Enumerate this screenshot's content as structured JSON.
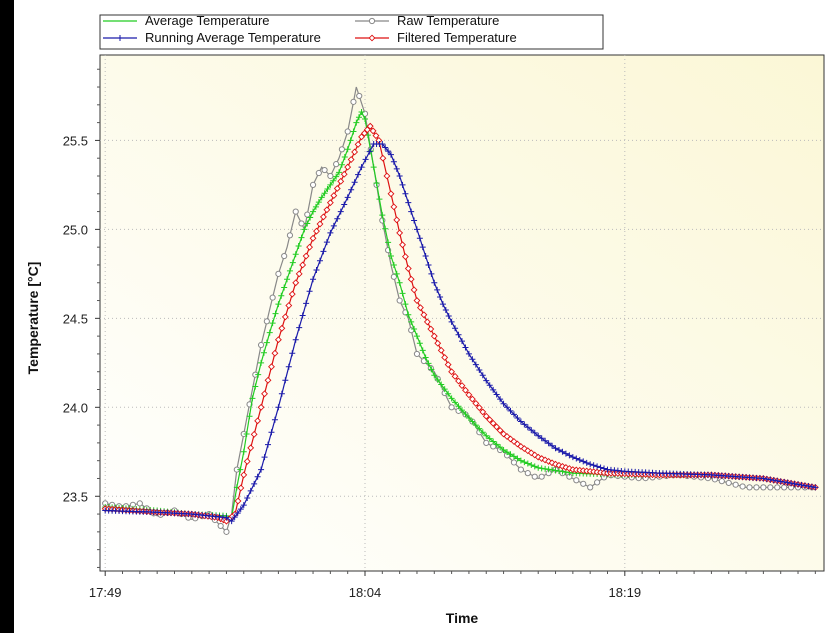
{
  "chart_data": {
    "type": "line",
    "xlabel": "Time",
    "ylabel": "Temperature [°C]",
    "x_ticks": [
      "17:49",
      "18:04",
      "18:19"
    ],
    "x_tick_minutes": [
      0,
      15,
      30
    ],
    "xlim": [
      -0.3,
      41.5
    ],
    "y_ticks": [
      "23.5",
      "24.0",
      "24.5",
      "25.0",
      "25.5"
    ],
    "y_tick_values": [
      23.5,
      24.0,
      24.5,
      25.0,
      25.5
    ],
    "ylim": [
      23.08,
      25.98
    ],
    "grid": true,
    "legend_position": "top",
    "x_unit": "minutes after 17:49",
    "series": [
      {
        "name": "Average Temperature",
        "color": "#22cc22",
        "marker": "plus",
        "points": [
          [
            0,
            23.44
          ],
          [
            3,
            23.42
          ],
          [
            5,
            23.4
          ],
          [
            7,
            23.39
          ],
          [
            7.3,
            23.38
          ],
          [
            7.6,
            23.55
          ],
          [
            8,
            23.75
          ],
          [
            8.5,
            24.05
          ],
          [
            9,
            24.25
          ],
          [
            9.5,
            24.42
          ],
          [
            10,
            24.58
          ],
          [
            10.5,
            24.72
          ],
          [
            11,
            24.86
          ],
          [
            11.5,
            25.0
          ],
          [
            12,
            25.1
          ],
          [
            12.5,
            25.18
          ],
          [
            13,
            25.25
          ],
          [
            13.5,
            25.32
          ],
          [
            14,
            25.45
          ],
          [
            14.5,
            25.6
          ],
          [
            14.8,
            25.66
          ],
          [
            15,
            25.62
          ],
          [
            15.5,
            25.35
          ],
          [
            16,
            25.08
          ],
          [
            16.5,
            24.85
          ],
          [
            17,
            24.7
          ],
          [
            17.5,
            24.52
          ],
          [
            18,
            24.4
          ],
          [
            18.5,
            24.28
          ],
          [
            19,
            24.18
          ],
          [
            20,
            24.05
          ],
          [
            21,
            23.94
          ],
          [
            22,
            23.84
          ],
          [
            23,
            23.76
          ],
          [
            24,
            23.7
          ],
          [
            25,
            23.66
          ],
          [
            27,
            23.63
          ],
          [
            30,
            23.62
          ],
          [
            35,
            23.62
          ],
          [
            38,
            23.6
          ],
          [
            41,
            23.55
          ]
        ]
      },
      {
        "name": "Raw Temperature",
        "color": "#888888",
        "marker": "circle",
        "points": [
          [
            0,
            23.46
          ],
          [
            1,
            23.44
          ],
          [
            2,
            23.46
          ],
          [
            3,
            23.39
          ],
          [
            4,
            23.42
          ],
          [
            5,
            23.37
          ],
          [
            6,
            23.4
          ],
          [
            6.5,
            23.35
          ],
          [
            7,
            23.3
          ],
          [
            7.3,
            23.4
          ],
          [
            7.6,
            23.65
          ],
          [
            8,
            23.85
          ],
          [
            8.5,
            24.1
          ],
          [
            9,
            24.35
          ],
          [
            9.5,
            24.55
          ],
          [
            10,
            24.75
          ],
          [
            10.5,
            24.9
          ],
          [
            11,
            25.1
          ],
          [
            11.5,
            25.0
          ],
          [
            12,
            25.25
          ],
          [
            12.5,
            25.35
          ],
          [
            13,
            25.3
          ],
          [
            13.5,
            25.4
          ],
          [
            14,
            25.55
          ],
          [
            14.5,
            25.8
          ],
          [
            15,
            25.65
          ],
          [
            15.5,
            25.35
          ],
          [
            16,
            25.05
          ],
          [
            16.5,
            24.8
          ],
          [
            17,
            24.6
          ],
          [
            17.5,
            24.5
          ],
          [
            18,
            24.3
          ],
          [
            19,
            24.2
          ],
          [
            20,
            24.0
          ],
          [
            21,
            23.95
          ],
          [
            22,
            23.8
          ],
          [
            23,
            23.75
          ],
          [
            24,
            23.65
          ],
          [
            25,
            23.6
          ],
          [
            26,
            23.65
          ],
          [
            27,
            23.6
          ],
          [
            28,
            23.55
          ],
          [
            29,
            23.62
          ],
          [
            31,
            23.6
          ],
          [
            33,
            23.62
          ],
          [
            35,
            23.6
          ],
          [
            37,
            23.55
          ],
          [
            39,
            23.55
          ],
          [
            41,
            23.55
          ]
        ]
      },
      {
        "name": "Running Average Temperature",
        "color": "#1a1aaa",
        "marker": "plus",
        "points": [
          [
            0,
            23.42
          ],
          [
            3,
            23.41
          ],
          [
            5,
            23.4
          ],
          [
            7,
            23.38
          ],
          [
            7.3,
            23.36
          ],
          [
            8,
            23.45
          ],
          [
            9,
            23.65
          ],
          [
            10,
            24.0
          ],
          [
            11,
            24.38
          ],
          [
            12,
            24.72
          ],
          [
            13,
            24.98
          ],
          [
            14,
            25.18
          ],
          [
            14.8,
            25.35
          ],
          [
            15.5,
            25.48
          ],
          [
            16,
            25.48
          ],
          [
            16.5,
            25.42
          ],
          [
            17,
            25.3
          ],
          [
            17.5,
            25.15
          ],
          [
            18,
            25.0
          ],
          [
            18.5,
            24.85
          ],
          [
            19,
            24.7
          ],
          [
            19.5,
            24.58
          ],
          [
            20,
            24.48
          ],
          [
            21,
            24.3
          ],
          [
            22,
            24.15
          ],
          [
            23,
            24.02
          ],
          [
            24,
            23.92
          ],
          [
            25,
            23.84
          ],
          [
            26,
            23.77
          ],
          [
            27,
            23.72
          ],
          [
            28,
            23.68
          ],
          [
            29,
            23.65
          ],
          [
            30,
            23.64
          ],
          [
            32,
            23.63
          ],
          [
            35,
            23.62
          ],
          [
            38,
            23.6
          ],
          [
            41,
            23.55
          ]
        ]
      },
      {
        "name": "Filtered Temperature",
        "color": "#dd1111",
        "marker": "diamond",
        "points": [
          [
            0,
            23.43
          ],
          [
            3,
            23.41
          ],
          [
            5,
            23.4
          ],
          [
            6.5,
            23.38
          ],
          [
            7,
            23.36
          ],
          [
            7.5,
            23.4
          ],
          [
            8,
            23.62
          ],
          [
            9,
            24.0
          ],
          [
            10,
            24.38
          ],
          [
            11,
            24.7
          ],
          [
            12,
            24.95
          ],
          [
            13,
            25.15
          ],
          [
            14,
            25.35
          ],
          [
            14.8,
            25.52
          ],
          [
            15.3,
            25.58
          ],
          [
            15.8,
            25.5
          ],
          [
            16.5,
            25.2
          ],
          [
            17,
            24.98
          ],
          [
            17.5,
            24.78
          ],
          [
            18,
            24.6
          ],
          [
            19,
            24.4
          ],
          [
            20,
            24.2
          ],
          [
            21,
            24.07
          ],
          [
            22,
            23.95
          ],
          [
            23,
            23.85
          ],
          [
            24,
            23.78
          ],
          [
            25,
            23.72
          ],
          [
            26,
            23.68
          ],
          [
            27,
            23.65
          ],
          [
            29,
            23.63
          ],
          [
            32,
            23.62
          ],
          [
            35,
            23.62
          ],
          [
            38,
            23.6
          ],
          [
            41,
            23.55
          ]
        ]
      }
    ]
  }
}
